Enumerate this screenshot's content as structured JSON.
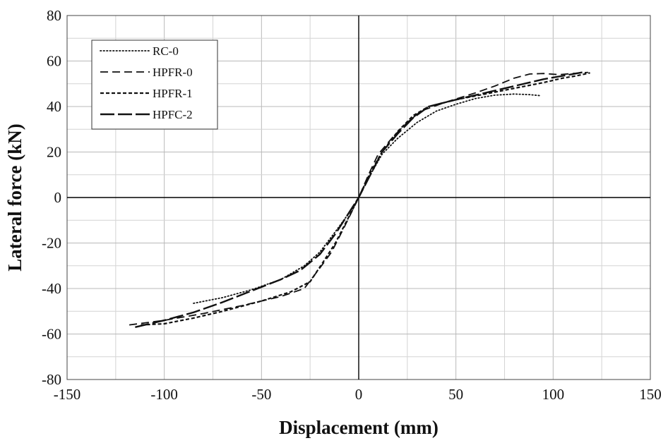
{
  "chart_data": {
    "type": "line",
    "title": "",
    "xlabel": "Displacement  (mm)",
    "ylabel": "Lateral force  (kN)",
    "xlim": [
      -150,
      150
    ],
    "ylim": [
      -80,
      80
    ],
    "x_ticks": [
      -150,
      -100,
      -50,
      0,
      50,
      100,
      150
    ],
    "y_ticks": [
      -80,
      -60,
      -40,
      -20,
      0,
      20,
      40,
      60,
      80
    ],
    "x_minor_step": 25,
    "y_minor_step": 10,
    "grid": true,
    "legend_position": "top-left",
    "series": [
      {
        "name": "RC-0",
        "dash": "dotted",
        "points": [
          [
            -85,
            -46.5
          ],
          [
            -70,
            -44
          ],
          [
            -55,
            -40.5
          ],
          [
            -40,
            -36
          ],
          [
            -28,
            -30
          ],
          [
            -20,
            -24
          ],
          [
            -12,
            -15
          ],
          [
            -6,
            -8
          ],
          [
            0,
            0
          ],
          [
            6,
            10
          ],
          [
            12,
            19
          ],
          [
            20,
            26
          ],
          [
            30,
            33
          ],
          [
            40,
            38
          ],
          [
            50,
            41
          ],
          [
            60,
            43.5
          ],
          [
            70,
            45
          ],
          [
            80,
            45.5
          ],
          [
            88,
            45.2
          ],
          [
            93,
            44.8
          ]
        ]
      },
      {
        "name": "HPFR-0",
        "dash": "dashed",
        "points": [
          [
            -118,
            -56
          ],
          [
            -100,
            -54
          ],
          [
            -80,
            -51
          ],
          [
            -60,
            -47.5
          ],
          [
            -40,
            -43.5
          ],
          [
            -28,
            -40
          ],
          [
            -20,
            -31
          ],
          [
            -14,
            -24
          ],
          [
            -8,
            -14
          ],
          [
            -4,
            -7
          ],
          [
            0,
            0
          ],
          [
            5,
            10
          ],
          [
            10,
            19
          ],
          [
            18,
            27
          ],
          [
            25,
            33
          ],
          [
            32,
            38
          ],
          [
            45,
            42
          ],
          [
            60,
            46
          ],
          [
            70,
            49
          ],
          [
            80,
            52.5
          ],
          [
            88,
            54.3
          ],
          [
            95,
            54.5
          ],
          [
            103,
            54
          ],
          [
            110,
            54.5
          ],
          [
            118,
            55
          ]
        ]
      },
      {
        "name": "HPFR-1",
        "dash": "short-dashed",
        "points": [
          [
            -112,
            -56
          ],
          [
            -100,
            -55.5
          ],
          [
            -85,
            -53
          ],
          [
            -70,
            -50
          ],
          [
            -50,
            -45.5
          ],
          [
            -35,
            -41.5
          ],
          [
            -25,
            -37
          ],
          [
            -18,
            -28
          ],
          [
            -12,
            -20
          ],
          [
            -6,
            -10
          ],
          [
            0,
            0
          ],
          [
            6,
            11
          ],
          [
            12,
            20
          ],
          [
            20,
            29
          ],
          [
            28,
            36
          ],
          [
            36,
            40
          ],
          [
            50,
            43
          ],
          [
            65,
            45.5
          ],
          [
            80,
            48
          ],
          [
            95,
            50.5
          ],
          [
            105,
            52.5
          ],
          [
            112,
            53.5
          ],
          [
            119,
            54.8
          ]
        ]
      },
      {
        "name": "HPFC-2",
        "dash": "long-dashed",
        "points": [
          [
            -115,
            -57
          ],
          [
            -100,
            -54
          ],
          [
            -85,
            -50.5
          ],
          [
            -70,
            -46
          ],
          [
            -55,
            -41
          ],
          [
            -40,
            -36
          ],
          [
            -30,
            -32
          ],
          [
            -20,
            -25
          ],
          [
            -12,
            -16
          ],
          [
            -6,
            -8
          ],
          [
            0,
            0
          ],
          [
            6,
            10
          ],
          [
            12,
            20
          ],
          [
            20,
            28
          ],
          [
            28,
            35
          ],
          [
            36,
            40
          ],
          [
            50,
            43
          ],
          [
            65,
            46
          ],
          [
            80,
            49
          ],
          [
            95,
            52
          ],
          [
            105,
            53.5
          ],
          [
            115,
            55
          ]
        ]
      }
    ]
  }
}
